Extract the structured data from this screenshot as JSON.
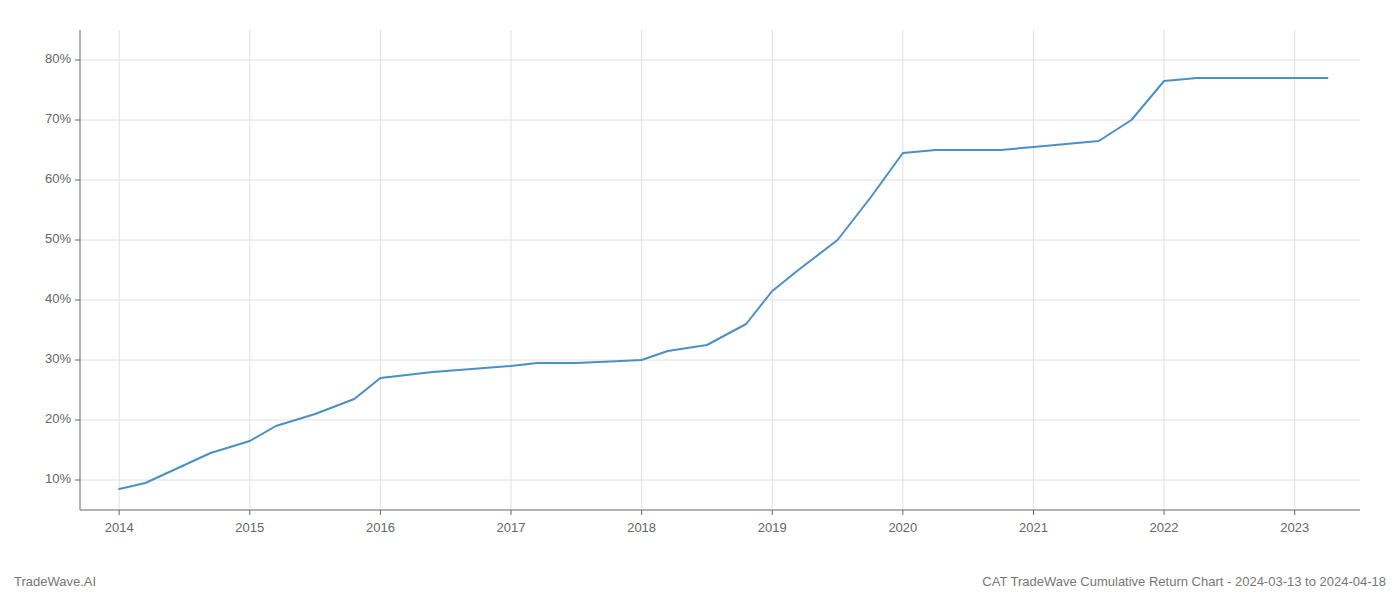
{
  "chart_data": {
    "type": "line",
    "title": "CAT TradeWave Cumulative Return Chart - 2024-03-13 to 2024-04-18",
    "annotations": [
      "TradeWave.AI"
    ],
    "x": [
      2014.0,
      2014.2,
      2014.4,
      2014.7,
      2015.0,
      2015.2,
      2015.5,
      2015.8,
      2016.0,
      2016.2,
      2016.4,
      2016.7,
      2017.0,
      2017.2,
      2017.5,
      2017.8,
      2018.0,
      2018.2,
      2018.5,
      2018.8,
      2019.0,
      2019.2,
      2019.5,
      2019.75,
      2020.0,
      2020.25,
      2020.5,
      2020.75,
      2021.0,
      2021.25,
      2021.5,
      2021.75,
      2022.0,
      2022.25,
      2022.5,
      2022.75,
      2023.0,
      2023.25
    ],
    "values": [
      8.5,
      9.5,
      11.5,
      14.5,
      16.5,
      19.0,
      21.0,
      23.5,
      27.0,
      27.5,
      28.0,
      28.5,
      29.0,
      29.5,
      29.5,
      29.8,
      30.0,
      31.5,
      32.5,
      36.0,
      41.5,
      45.0,
      50.0,
      57.0,
      64.5,
      65.0,
      65.0,
      65.0,
      65.5,
      66.0,
      66.5,
      70.0,
      76.5,
      77.0,
      77.0,
      77.0,
      77.0,
      77.0
    ],
    "color": "#4a90c4",
    "xlim": [
      2013.7,
      2023.5
    ],
    "ylim": [
      5,
      85
    ],
    "xticks": [
      2014,
      2015,
      2016,
      2017,
      2018,
      2019,
      2020,
      2021,
      2022,
      2023
    ],
    "yticks": [
      {
        "value": 10,
        "label": "10%"
      },
      {
        "value": 20,
        "label": "20%"
      },
      {
        "value": 30,
        "label": "30%"
      },
      {
        "value": 40,
        "label": "40%"
      },
      {
        "value": 50,
        "label": "50%"
      },
      {
        "value": 60,
        "label": "60%"
      },
      {
        "value": 70,
        "label": "70%"
      },
      {
        "value": 80,
        "label": "80%"
      }
    ],
    "grid": true
  }
}
